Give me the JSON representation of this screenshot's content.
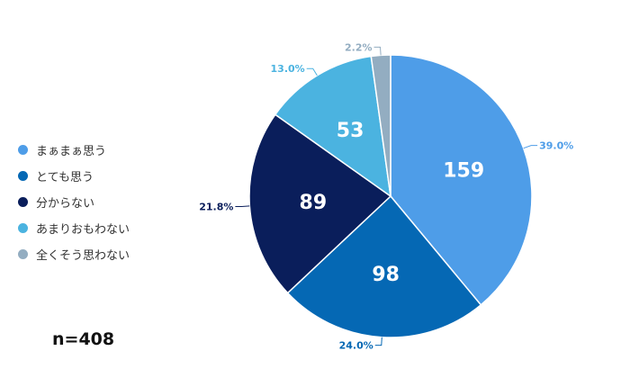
{
  "chart_data": {
    "type": "pie",
    "title": "",
    "categories": [
      "まぁまぁ思う",
      "とても思う",
      "分からない",
      "あまりおもわない",
      "全くそう思わない"
    ],
    "values": [
      159,
      98,
      89,
      53,
      9
    ],
    "percent_labels": [
      "39.0%",
      "24.0%",
      "21.8%",
      "13.0%",
      "2.2%"
    ],
    "colors": [
      "#4E9DE8",
      "#0568B4",
      "#0A1E5B",
      "#4BB3E0",
      "#93ADC1"
    ],
    "label_colors": [
      "#4E9DE8",
      "#0568B4",
      "#0A1E5B",
      "#4BB3E0",
      "#93ADC1"
    ],
    "legend_position": "left"
  },
  "sample_size": "n=408"
}
